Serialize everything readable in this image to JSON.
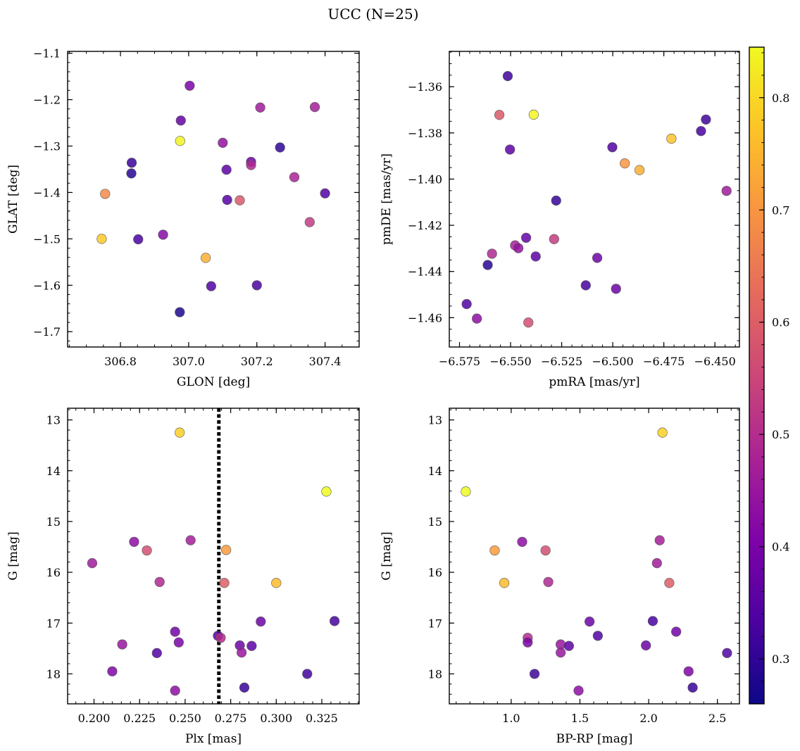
{
  "figure": {
    "suptitle": "UCC (N=25)",
    "colormap": "plasma",
    "point_edge_color": "#555555",
    "colorbar": {
      "vmin": 0.26,
      "vmax": 0.845,
      "ticks": [
        "0.3",
        "0.4",
        "0.5",
        "0.6",
        "0.7",
        "0.8"
      ]
    }
  },
  "chart_data": [
    {
      "type": "scatter",
      "xlabel": "GLON [deg]",
      "ylabel": "GLAT [deg]",
      "xlim": [
        306.645,
        307.5
      ],
      "ylim": [
        -1.733,
        -1.096
      ],
      "xticks": [
        "306.8",
        "307.0",
        "307.2",
        "307.4"
      ],
      "yticks": [
        "−1.7",
        "−1.6",
        "−1.5",
        "−1.4",
        "−1.3",
        "−1.2",
        "−1.1"
      ],
      "points": [
        {
          "x": 306.745,
          "y": -1.5,
          "c": 0.78
        },
        {
          "x": 306.755,
          "y": -1.403,
          "c": 0.68
        },
        {
          "x": 306.833,
          "y": -1.336,
          "c": 0.31
        },
        {
          "x": 306.832,
          "y": -1.359,
          "c": 0.29
        },
        {
          "x": 306.852,
          "y": -1.501,
          "c": 0.33
        },
        {
          "x": 306.925,
          "y": -1.491,
          "c": 0.42
        },
        {
          "x": 306.975,
          "y": -1.289,
          "c": 0.84
        },
        {
          "x": 306.977,
          "y": -1.245,
          "c": 0.37
        },
        {
          "x": 306.974,
          "y": -1.658,
          "c": 0.28
        },
        {
          "x": 307.003,
          "y": -1.17,
          "c": 0.4
        },
        {
          "x": 307.05,
          "y": -1.541,
          "c": 0.74
        },
        {
          "x": 307.066,
          "y": -1.602,
          "c": 0.34
        },
        {
          "x": 307.1,
          "y": -1.293,
          "c": 0.44
        },
        {
          "x": 307.111,
          "y": -1.351,
          "c": 0.36
        },
        {
          "x": 307.113,
          "y": -1.416,
          "c": 0.35
        },
        {
          "x": 307.15,
          "y": -1.417,
          "c": 0.59
        },
        {
          "x": 307.183,
          "y": -1.334,
          "c": 0.38
        },
        {
          "x": 307.183,
          "y": -1.341,
          "c": 0.49
        },
        {
          "x": 307.2,
          "y": -1.6,
          "c": 0.33
        },
        {
          "x": 307.21,
          "y": -1.217,
          "c": 0.46
        },
        {
          "x": 307.268,
          "y": -1.303,
          "c": 0.3
        },
        {
          "x": 307.31,
          "y": -1.367,
          "c": 0.48
        },
        {
          "x": 307.355,
          "y": -1.464,
          "c": 0.53
        },
        {
          "x": 307.37,
          "y": -1.216,
          "c": 0.47
        },
        {
          "x": 307.4,
          "y": -1.402,
          "c": 0.34
        }
      ]
    },
    {
      "type": "scatter",
      "xlabel": "pmRA [mas/yr]",
      "ylabel": "pmDE [mas/yr]",
      "xlim": [
        -6.58,
        -6.438
      ],
      "ylim": [
        -1.4727,
        -1.3447
      ],
      "xticks": [
        "−6.575",
        "−6.550",
        "−6.525",
        "−6.500",
        "−6.475",
        "−6.450"
      ],
      "yticks": [
        "−1.46",
        "−1.44",
        "−1.42",
        "−1.40",
        "−1.38",
        "−1.36"
      ],
      "points": [
        {
          "x": -6.5715,
          "y": -1.4541,
          "c": 0.34
        },
        {
          "x": -6.5665,
          "y": -1.4604,
          "c": 0.43
        },
        {
          "x": -6.5612,
          "y": -1.4372,
          "c": 0.29
        },
        {
          "x": -6.5591,
          "y": -1.4323,
          "c": 0.49
        },
        {
          "x": -6.5555,
          "y": -1.3722,
          "c": 0.59
        },
        {
          "x": -6.5514,
          "y": -1.3554,
          "c": 0.32
        },
        {
          "x": -6.5503,
          "y": -1.3872,
          "c": 0.36
        },
        {
          "x": -6.5478,
          "y": -1.4287,
          "c": 0.47
        },
        {
          "x": -6.5462,
          "y": -1.4299,
          "c": 0.44
        },
        {
          "x": -6.5424,
          "y": -1.4254,
          "c": 0.37
        },
        {
          "x": -6.5413,
          "y": -1.4621,
          "c": 0.57
        },
        {
          "x": -6.5387,
          "y": -1.3721,
          "c": 0.84
        },
        {
          "x": -6.5377,
          "y": -1.4335,
          "c": 0.36
        },
        {
          "x": -6.5287,
          "y": -1.426,
          "c": 0.53
        },
        {
          "x": -6.5277,
          "y": -1.4093,
          "c": 0.31
        },
        {
          "x": -6.5132,
          "y": -1.446,
          "c": 0.33
        },
        {
          "x": -6.5076,
          "y": -1.4341,
          "c": 0.38
        },
        {
          "x": -6.5002,
          "y": -1.3862,
          "c": 0.34
        },
        {
          "x": -6.4984,
          "y": -1.4475,
          "c": 0.38
        },
        {
          "x": -6.4941,
          "y": -1.3932,
          "c": 0.7
        },
        {
          "x": -6.4869,
          "y": -1.3961,
          "c": 0.74
        },
        {
          "x": -6.4713,
          "y": -1.3825,
          "c": 0.77
        },
        {
          "x": -6.4568,
          "y": -1.3792,
          "c": 0.33
        },
        {
          "x": -6.4544,
          "y": -1.3742,
          "c": 0.32
        },
        {
          "x": -6.4443,
          "y": -1.4051,
          "c": 0.46
        }
      ]
    },
    {
      "type": "scatter",
      "xlabel": "Plx [mas]",
      "ylabel": "G [mag]",
      "xlim": [
        0.1855,
        0.3455
      ],
      "ylim": [
        18.59,
        12.77
      ],
      "x_reference_line": {
        "x": 0.2685,
        "style": "dotted",
        "color": "#000000"
      },
      "xticks": [
        "0.200",
        "0.225",
        "0.250",
        "0.275",
        "0.300",
        "0.325"
      ],
      "yticks": [
        "13",
        "14",
        "15",
        "16",
        "17",
        "18"
      ],
      "points": [
        {
          "x": 0.199,
          "y": 15.82,
          "c": 0.46
        },
        {
          "x": 0.21,
          "y": 17.95,
          "c": 0.41
        },
        {
          "x": 0.2155,
          "y": 17.42,
          "c": 0.45
        },
        {
          "x": 0.222,
          "y": 15.4,
          "c": 0.43
        },
        {
          "x": 0.229,
          "y": 15.57,
          "c": 0.57
        },
        {
          "x": 0.2345,
          "y": 17.59,
          "c": 0.34
        },
        {
          "x": 0.236,
          "y": 16.19,
          "c": 0.49
        },
        {
          "x": 0.2445,
          "y": 17.17,
          "c": 0.39
        },
        {
          "x": 0.2445,
          "y": 18.33,
          "c": 0.43
        },
        {
          "x": 0.2465,
          "y": 17.38,
          "c": 0.4
        },
        {
          "x": 0.247,
          "y": 13.25,
          "c": 0.79
        },
        {
          "x": 0.253,
          "y": 15.37,
          "c": 0.47
        },
        {
          "x": 0.268,
          "y": 17.25,
          "c": 0.34
        },
        {
          "x": 0.2695,
          "y": 17.29,
          "c": 0.5
        },
        {
          "x": 0.2715,
          "y": 16.21,
          "c": 0.6
        },
        {
          "x": 0.2725,
          "y": 15.56,
          "c": 0.71
        },
        {
          "x": 0.28,
          "y": 17.44,
          "c": 0.38
        },
        {
          "x": 0.281,
          "y": 17.58,
          "c": 0.45
        },
        {
          "x": 0.2825,
          "y": 18.27,
          "c": 0.31
        },
        {
          "x": 0.2865,
          "y": 17.45,
          "c": 0.36
        },
        {
          "x": 0.2915,
          "y": 16.97,
          "c": 0.38
        },
        {
          "x": 0.3,
          "y": 16.21,
          "c": 0.76
        },
        {
          "x": 0.317,
          "y": 18.0,
          "c": 0.32
        },
        {
          "x": 0.3275,
          "y": 14.41,
          "c": 0.85
        },
        {
          "x": 0.332,
          "y": 16.96,
          "c": 0.33
        }
      ]
    },
    {
      "type": "scatter",
      "xlabel": "BP-RP [mag]",
      "ylabel": "G [mag]",
      "xlim": [
        0.55,
        2.66
      ],
      "ylim": [
        18.59,
        12.77
      ],
      "xticks": [
        "1.0",
        "1.5",
        "2.0",
        "2.5"
      ],
      "yticks": [
        "13",
        "14",
        "15",
        "16",
        "17",
        "18"
      ],
      "points": [
        {
          "x": 0.67,
          "y": 14.41,
          "c": 0.85
        },
        {
          "x": 0.88,
          "y": 15.57,
          "c": 0.71
        },
        {
          "x": 0.95,
          "y": 16.21,
          "c": 0.76
        },
        {
          "x": 1.08,
          "y": 15.4,
          "c": 0.43
        },
        {
          "x": 1.12,
          "y": 17.29,
          "c": 0.5
        },
        {
          "x": 1.12,
          "y": 17.38,
          "c": 0.4
        },
        {
          "x": 1.17,
          "y": 18.0,
          "c": 0.32
        },
        {
          "x": 1.25,
          "y": 15.57,
          "c": 0.57
        },
        {
          "x": 1.27,
          "y": 16.19,
          "c": 0.49
        },
        {
          "x": 1.36,
          "y": 17.42,
          "c": 0.45
        },
        {
          "x": 1.36,
          "y": 17.58,
          "c": 0.45
        },
        {
          "x": 1.42,
          "y": 17.45,
          "c": 0.36
        },
        {
          "x": 1.49,
          "y": 18.33,
          "c": 0.43
        },
        {
          "x": 1.57,
          "y": 16.97,
          "c": 0.38
        },
        {
          "x": 1.63,
          "y": 17.25,
          "c": 0.34
        },
        {
          "x": 1.98,
          "y": 17.44,
          "c": 0.38
        },
        {
          "x": 2.03,
          "y": 16.96,
          "c": 0.33
        },
        {
          "x": 2.06,
          "y": 15.82,
          "c": 0.46
        },
        {
          "x": 2.08,
          "y": 15.37,
          "c": 0.47
        },
        {
          "x": 2.1,
          "y": 13.25,
          "c": 0.79
        },
        {
          "x": 2.15,
          "y": 16.21,
          "c": 0.6
        },
        {
          "x": 2.2,
          "y": 17.17,
          "c": 0.39
        },
        {
          "x": 2.29,
          "y": 17.95,
          "c": 0.41
        },
        {
          "x": 2.32,
          "y": 18.27,
          "c": 0.31
        },
        {
          "x": 2.57,
          "y": 17.59,
          "c": 0.34
        }
      ]
    }
  ]
}
